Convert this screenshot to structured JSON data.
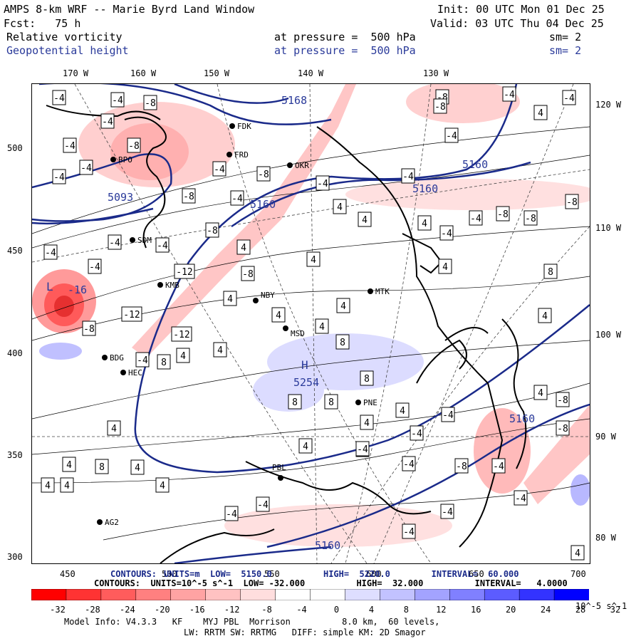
{
  "header": {
    "title": "AMPS 8-km WRF -- Marie Byrd Land Window",
    "init": "Init: 00 UTC Mon 01 Dec 25",
    "fcst": "Fcst:   75 h",
    "valid": "Valid: 03 UTC Thu 04 Dec 25",
    "field1": {
      "name": "Relative vorticity",
      "level": "at pressure =  500 hPa",
      "sm": "sm= 2"
    },
    "field2": {
      "name": "Geopotential height",
      "level": "at pressure =  500 hPa",
      "sm": "sm= 2"
    }
  },
  "axes": {
    "top_lon": [
      "170 W",
      "160 W",
      "150 W",
      "140 W",
      "130 W"
    ],
    "right_lon": [
      "120 W",
      "110 W",
      "100 W",
      "90 W",
      "80 W"
    ],
    "left_y": [
      "500",
      "450",
      "400",
      "350",
      "300"
    ],
    "bottom_x": [
      "450",
      "500",
      "550",
      "600",
      "650",
      "700"
    ]
  },
  "stations": [
    "FDK",
    "FRD",
    "BPO",
    "SDM",
    "KMB",
    "NBY",
    "MTK",
    "MSD",
    "BDG",
    "HEC",
    "PNE",
    "PBL",
    "AG2",
    "OKR"
  ],
  "map_labels": {
    "height": [
      "5168",
      "5160",
      "5160",
      "5160",
      "5160",
      "5093",
      "5160"
    ],
    "high_symbol": "H",
    "high_value": "5254",
    "low_symbol": "L",
    "low_value": "-16"
  },
  "vort_box_labels": [
    "-4",
    "-8",
    "-12",
    "4",
    "8"
  ],
  "contour_info": {
    "line1_left": "CONTOURS:",
    "line1_overlap": "UNITS=m  LOW=  5150.0          HIGH=  5220.0        INTERVAL=  60.000",
    "line2": "CONTOURS:  UNITS=10^-5 s^-1  LOW= -32.000          HIGH=  32.000          INTERVAL=   4.0000"
  },
  "colorbar": {
    "labels": [
      "-32",
      "-28",
      "-24",
      "-20",
      "-16",
      "-12",
      "-8",
      "-4",
      "0",
      "4",
      "8",
      "12",
      "16",
      "20",
      "24",
      "28",
      "32"
    ],
    "unit": "10^-5 s^-1",
    "colors": [
      "#ff0000",
      "#ff3333",
      "#ff5c5c",
      "#ff8080",
      "#ffa3a3",
      "#ffc2c2",
      "#ffdede",
      "#ffffff",
      "#ffffff",
      "#dedeff",
      "#c2c2ff",
      "#a3a3ff",
      "#8080ff",
      "#5c5cff",
      "#3333ff",
      "#0000ff"
    ]
  },
  "footer": {
    "line1": "Model Info: V4.3.3   KF    MYJ PBL  Morrison          8.0 km,  60 levels,",
    "line2": "LW: RRTM SW: RRTMG   DIFF: simple KM: 2D Smagor"
  }
}
